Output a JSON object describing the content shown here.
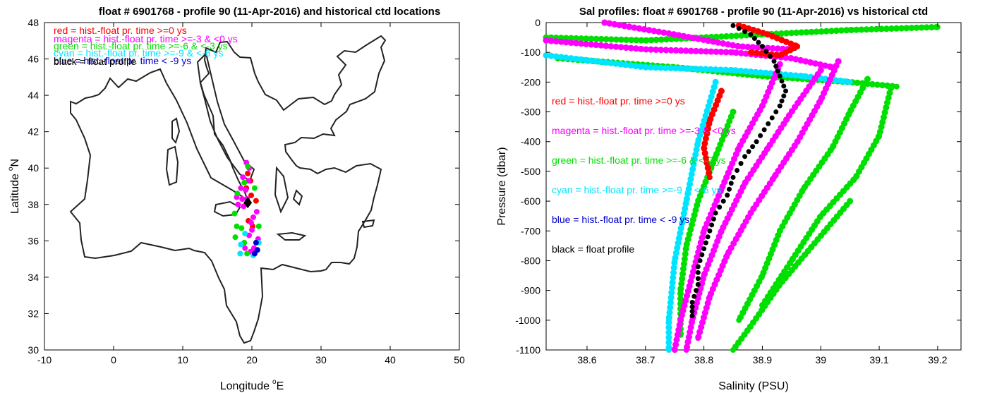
{
  "chart_data": [
    {
      "type": "scatter",
      "title": "float # 6901768 - profile 90 (11-Apr-2016) and historical ctd locations",
      "xlabel": "Longitude",
      "xlabel_unit": "E",
      "xlabel_sup": "o",
      "ylabel": "Latitude",
      "ylabel_unit": "N",
      "ylabel_sup": "o",
      "xlim": [
        -10,
        50
      ],
      "ylim": [
        30,
        48
      ],
      "xticks": [
        -10,
        0,
        10,
        20,
        30,
        40,
        50
      ],
      "yticks": [
        30,
        32,
        34,
        36,
        38,
        40,
        42,
        44,
        46,
        48
      ],
      "legend": [
        {
          "text": "red = hist.-float pr. time >=0 ys",
          "color": "#ff0000"
        },
        {
          "text": "magenta = hist.-float pr. time >=-3 & <0 ys",
          "color": "#ff00ff"
        },
        {
          "text": "green = hist.-float pr. time >=-6 & <-3 ys",
          "color": "#00e000"
        },
        {
          "text": "cyan = hist.-float pr. time >=-9 & <-6 ys",
          "color": "#00e5ff"
        },
        {
          "text": "blue = hist.-float pr. time < -9 ys",
          "color": "#0000cc"
        },
        {
          "text": "black = float profile",
          "color": "#000000"
        }
      ],
      "series": [
        {
          "color": "#ff0000",
          "points": [
            [
              19.4,
              39.7
            ],
            [
              19.8,
              39.3
            ],
            [
              19.2,
              38.9
            ],
            [
              19.9,
              38.5
            ],
            [
              20.6,
              38.2
            ],
            [
              19.5,
              37.1
            ],
            [
              20.1,
              36.8
            ]
          ]
        },
        {
          "color": "#ff00ff",
          "points": [
            [
              19.2,
              40.3
            ],
            [
              19.6,
              40.0
            ],
            [
              18.7,
              39.5
            ],
            [
              19.5,
              39.3
            ],
            [
              18.4,
              38.9
            ],
            [
              19.1,
              38.8
            ],
            [
              17.8,
              38.4
            ],
            [
              18.6,
              38.3
            ],
            [
              19.3,
              38.3
            ],
            [
              18.0,
              38.0
            ],
            [
              18.8,
              37.9
            ],
            [
              20.7,
              37.6
            ],
            [
              20.2,
              37.3
            ],
            [
              19.9,
              37.0
            ],
            [
              20.0,
              36.6
            ],
            [
              19.6,
              36.3
            ],
            [
              20.9,
              36.1
            ],
            [
              19.0,
              35.6
            ],
            [
              20.3,
              35.6
            ],
            [
              19.8,
              35.4
            ]
          ]
        },
        {
          "color": "#00e000",
          "points": [
            [
              19.4,
              40.1
            ],
            [
              18.9,
              39.2
            ],
            [
              17.9,
              38.6
            ],
            [
              20.4,
              38.9
            ],
            [
              17.5,
              37.5
            ],
            [
              17.8,
              36.8
            ],
            [
              18.5,
              36.7
            ],
            [
              17.6,
              36.2
            ],
            [
              18.9,
              35.9
            ],
            [
              19.3,
              35.3
            ],
            [
              21.0,
              36.8
            ]
          ]
        },
        {
          "color": "#00e5ff",
          "points": [
            [
              18.4,
              35.8
            ],
            [
              19.0,
              36.4
            ],
            [
              21.0,
              35.9
            ],
            [
              20.2,
              35.2
            ],
            [
              18.3,
              35.3
            ]
          ]
        },
        {
          "color": "#0000cc",
          "points": [
            [
              20.6,
              35.9
            ],
            [
              20.8,
              35.5
            ],
            [
              20.4,
              35.3
            ]
          ]
        },
        {
          "color": "#000000",
          "marker": "diamond",
          "points": [
            [
              19.4,
              38.1
            ]
          ]
        }
      ]
    },
    {
      "type": "scatter",
      "title": "Sal profiles: float # 6901768 - profile 90 (11-Apr-2016) vs historical ctd",
      "xlabel": "Salinity (PSU)",
      "ylabel": "Pressure (dbar)",
      "xlim": [
        38.53,
        39.24
      ],
      "ylim": [
        -1100,
        0
      ],
      "xticks": [
        38.6,
        38.7,
        38.8,
        38.9,
        39,
        39.1,
        39.2
      ],
      "xtick_labels": [
        "38.6",
        "38.7",
        "38.8",
        "38.9",
        "39",
        "39.1",
        "39.2"
      ],
      "yticks": [
        0,
        -100,
        -200,
        -300,
        -400,
        -500,
        -600,
        -700,
        -800,
        -900,
        -1000,
        -1100
      ],
      "legend": [
        {
          "text": "red = hist.-float pr. time >=0 ys",
          "color": "#ff0000"
        },
        {
          "text": "magenta = hist.-float pr. time >=-3 & <0 ys",
          "color": "#ff00ff"
        },
        {
          "text": "green = hist.-float pr. time >=-6 & <-3 ys",
          "color": "#00e000"
        },
        {
          "text": "cyan = hist.-float pr. time >=-9 & <-6 ys",
          "color": "#00e5ff"
        },
        {
          "text": "blue = hist.-float pr. time < -9 ys",
          "color": "#0000cc"
        },
        {
          "text": "black = float profile",
          "color": "#000000"
        }
      ],
      "curves": [
        {
          "color": "#00e000",
          "points": [
            [
              38.53,
              -50
            ],
            [
              38.7,
              -60
            ],
            [
              38.9,
              -40
            ],
            [
              39.05,
              -25
            ],
            [
              39.2,
              -15
            ]
          ]
        },
        {
          "color": "#00e000",
          "points": [
            [
              38.55,
              -120
            ],
            [
              38.75,
              -150
            ],
            [
              38.9,
              -180
            ],
            [
              39.05,
              -200
            ],
            [
              39.13,
              -215
            ]
          ]
        },
        {
          "color": "#00e000",
          "points": [
            [
              39.08,
              -190
            ],
            [
              39.05,
              -300
            ],
            [
              39.02,
              -420
            ],
            [
              38.97,
              -560
            ],
            [
              38.93,
              -700
            ],
            [
              38.9,
              -850
            ],
            [
              38.86,
              -1000
            ]
          ]
        },
        {
          "color": "#00e000",
          "points": [
            [
              39.12,
              -220
            ],
            [
              39.1,
              -380
            ],
            [
              39.06,
              -520
            ],
            [
              39.0,
              -650
            ],
            [
              38.95,
              -800
            ],
            [
              38.9,
              -950
            ]
          ]
        },
        {
          "color": "#00e000",
          "points": [
            [
              39.05,
              -600
            ],
            [
              38.99,
              -740
            ],
            [
              38.93,
              -880
            ],
            [
              38.88,
              -1020
            ],
            [
              38.85,
              -1100
            ]
          ]
        },
        {
          "color": "#00e000",
          "points": [
            [
              38.85,
              -300
            ],
            [
              38.82,
              -450
            ],
            [
              38.79,
              -600
            ],
            [
              38.77,
              -750
            ],
            [
              38.76,
              -900
            ],
            [
              38.76,
              -1050
            ]
          ]
        },
        {
          "color": "#00e5ff",
          "points": [
            [
              38.53,
              -110
            ],
            [
              38.7,
              -150
            ],
            [
              38.85,
              -160
            ],
            [
              38.97,
              -180
            ],
            [
              39.05,
              -200
            ]
          ]
        },
        {
          "color": "#00e5ff",
          "points": [
            [
              38.82,
              -200
            ],
            [
              38.79,
              -400
            ],
            [
              38.77,
              -600
            ],
            [
              38.75,
              -800
            ],
            [
              38.74,
              -1000
            ],
            [
              38.74,
              -1100
            ]
          ]
        },
        {
          "color": "#ff00ff",
          "points": [
            [
              38.53,
              -60
            ],
            [
              38.7,
              -90
            ],
            [
              38.85,
              -100
            ],
            [
              38.95,
              -120
            ],
            [
              39.02,
              -150
            ]
          ]
        },
        {
          "color": "#ff00ff",
          "points": [
            [
              39.0,
              -160
            ],
            [
              38.95,
              -300
            ],
            [
              38.91,
              -420
            ],
            [
              38.87,
              -540
            ],
            [
              38.83,
              -700
            ],
            [
              38.8,
              -850
            ],
            [
              38.78,
              -1000
            ],
            [
              38.77,
              -1100
            ]
          ]
        },
        {
          "color": "#ff00ff",
          "points": [
            [
              38.93,
              -140
            ],
            [
              38.9,
              -280
            ],
            [
              38.86,
              -420
            ],
            [
              38.83,
              -560
            ],
            [
              38.8,
              -700
            ],
            [
              38.78,
              -850
            ],
            [
              38.76,
              -1000
            ],
            [
              38.75,
              -1100
            ]
          ]
        },
        {
          "color": "#ff00ff",
          "points": [
            [
              39.03,
              -130
            ],
            [
              39.0,
              -260
            ],
            [
              38.96,
              -400
            ],
            [
              38.92,
              -520
            ],
            [
              38.88,
              -640
            ],
            [
              38.84,
              -780
            ],
            [
              38.81,
              -920
            ],
            [
              38.79,
              -1060
            ]
          ]
        },
        {
          "color": "#ff00ff",
          "points": [
            [
              38.63,
              0
            ],
            [
              38.75,
              -40
            ],
            [
              38.86,
              -80
            ],
            [
              38.95,
              -90
            ]
          ]
        },
        {
          "color": "#ff0000",
          "points": [
            [
              38.86,
              -10
            ],
            [
              38.91,
              -40
            ],
            [
              38.96,
              -80
            ],
            [
              38.93,
              -110
            ],
            [
              38.88,
              -100
            ]
          ]
        },
        {
          "color": "#ff0000",
          "points": [
            [
              38.83,
              -230
            ],
            [
              38.81,
              -330
            ],
            [
              38.8,
              -420
            ],
            [
              38.81,
              -520
            ]
          ]
        }
      ],
      "float_profile": {
        "color": "#000000",
        "points": [
          [
            38.85,
            -10
          ],
          [
            38.88,
            -40
          ],
          [
            38.9,
            -80
          ],
          [
            38.92,
            -130
          ],
          [
            38.93,
            -180
          ],
          [
            38.94,
            -230
          ],
          [
            38.93,
            -280
          ],
          [
            38.91,
            -340
          ],
          [
            38.89,
            -400
          ],
          [
            38.87,
            -450
          ],
          [
            38.85,
            -520
          ],
          [
            38.84,
            -580
          ],
          [
            38.82,
            -640
          ],
          [
            38.81,
            -700
          ],
          [
            38.8,
            -760
          ],
          [
            38.79,
            -820
          ],
          [
            38.79,
            -880
          ],
          [
            38.78,
            -940
          ],
          [
            38.78,
            -985
          ]
        ]
      }
    }
  ]
}
